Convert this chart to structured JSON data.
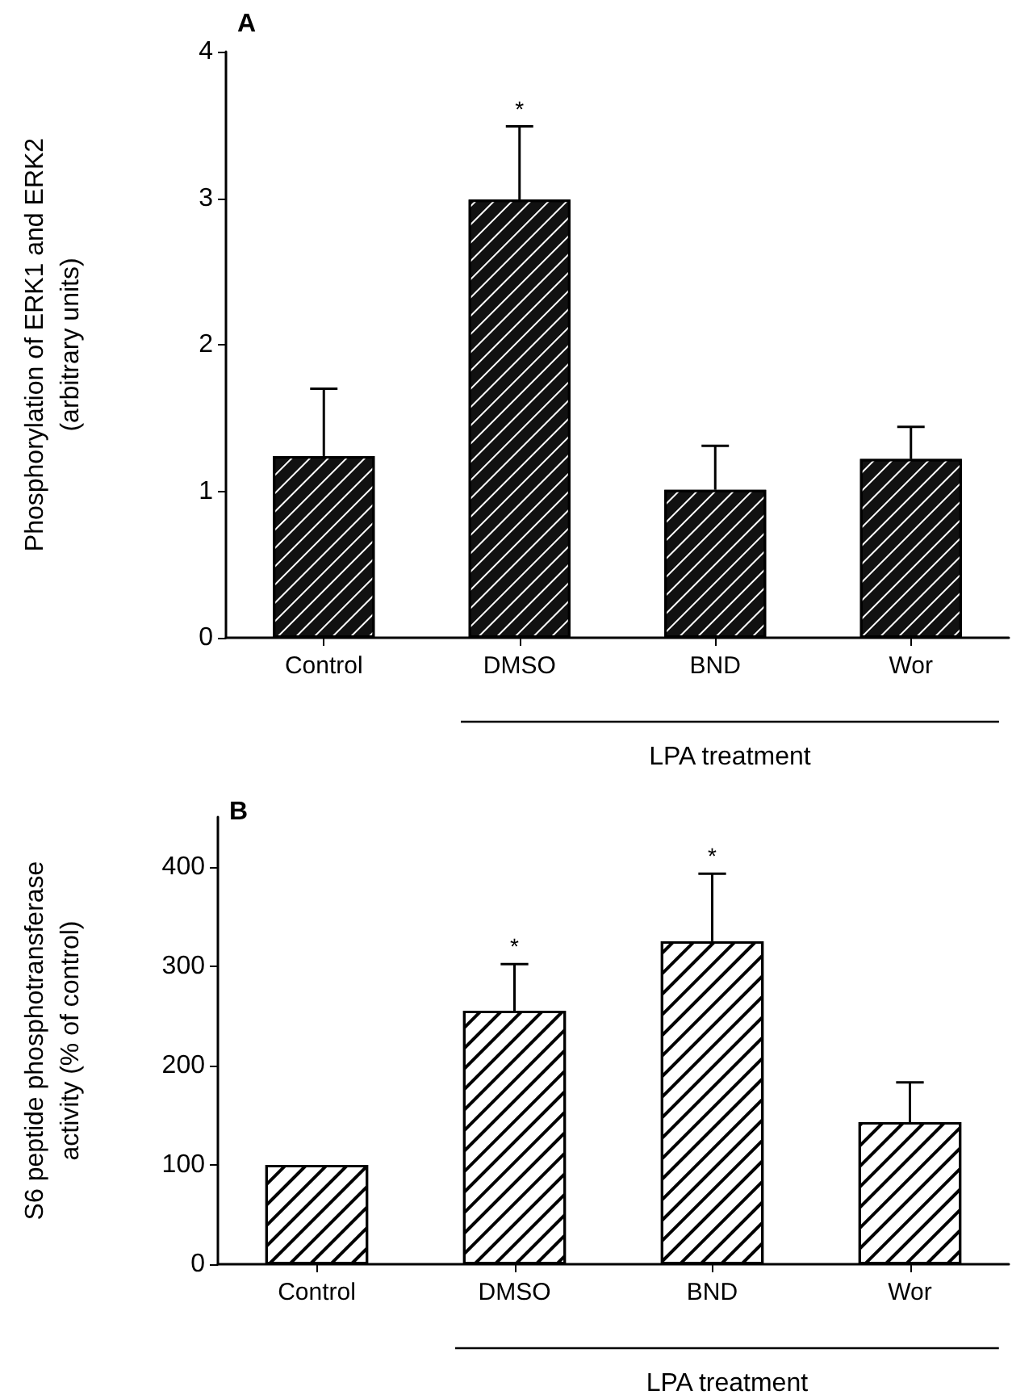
{
  "chart_data": [
    {
      "type": "bar",
      "title": "A",
      "ylabel": "Phosphorylation of ERK1 and ERK2\n(arbitrary units)",
      "categories": [
        "Control",
        "DMSO",
        "BND",
        "Wor"
      ],
      "values": [
        1.24,
        2.99,
        1.01,
        1.22
      ],
      "errors": [
        [
          1.24,
          1.7
        ],
        [
          2.99,
          3.49
        ],
        [
          1.01,
          1.31
        ],
        [
          1.22,
          1.44
        ]
      ],
      "color": "#111111",
      "ylim": [
        0,
        4
      ],
      "yticks": [
        0,
        1,
        2,
        3,
        4
      ],
      "grid": false,
      "annotations": [
        {
          "text": "*",
          "x": "DMSO",
          "y": 3.49
        },
        "LPA treatment"
      ]
    },
    {
      "type": "bar",
      "title": "B",
      "ylabel": "S6 peptide phosphotransferase\nactivity (% of control)",
      "categories": [
        "Control",
        "DMSO",
        "BND",
        "Wor"
      ],
      "values": [
        100,
        255,
        325,
        143
      ],
      "errors": [
        null,
        [
          255,
          302
        ],
        [
          325,
          393
        ],
        [
          143,
          183
        ]
      ],
      "color": "#ffffff",
      "ylim": [
        0,
        450
      ],
      "yticks": [
        0,
        100,
        200,
        300,
        400
      ],
      "grid": false,
      "annotations": [
        {
          "text": "*",
          "x": "DMSO",
          "y": 302
        },
        {
          "text": "*",
          "x": "BND",
          "y": 393
        },
        "LPA treatment"
      ]
    }
  ]
}
